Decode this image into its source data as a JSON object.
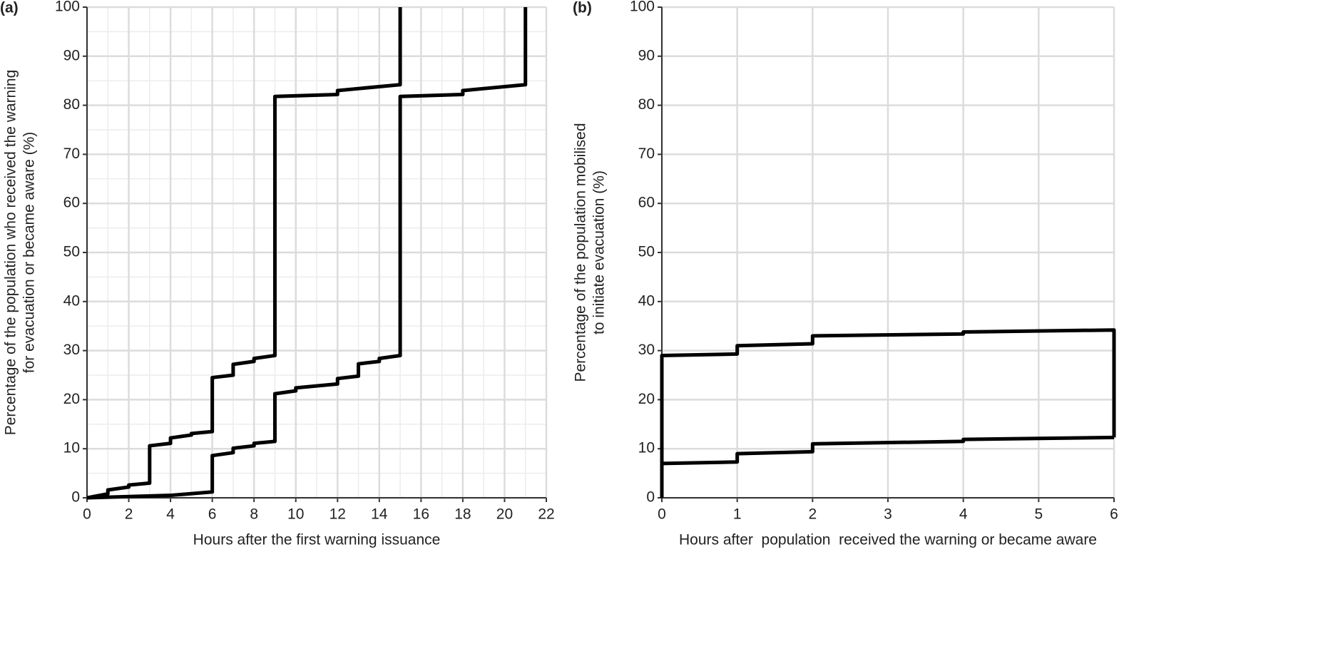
{
  "chart_data": [
    {
      "type": "line",
      "panel": "(a)",
      "xlabel": "Hours after the first warning issuance",
      "ylabel": [
        "Percentage of the population who received the warning",
        "for evacuation or became aware (%)"
      ],
      "xlim": [
        0,
        22
      ],
      "xticks": [
        0,
        2,
        4,
        6,
        8,
        10,
        12,
        14,
        16,
        18,
        20,
        22
      ],
      "ylim": [
        0,
        100
      ],
      "yticks": [
        0,
        10,
        20,
        30,
        40,
        50,
        60,
        70,
        80,
        90,
        100
      ],
      "grid": true,
      "minor_grid": true,
      "series": [
        {
          "color": "#000000",
          "x": [
            0,
            1,
            1,
            2,
            2,
            3,
            3,
            4,
            4,
            5,
            5,
            6,
            6,
            7,
            7,
            8,
            8,
            9,
            9,
            12,
            12,
            15,
            15
          ],
          "values": [
            0,
            0.8,
            1.6,
            2.2,
            2.6,
            3,
            10.6,
            11.1,
            12.2,
            12.8,
            13.1,
            13.5,
            24.5,
            25,
            27.2,
            27.8,
            28.4,
            29,
            81.8,
            82.2,
            83,
            84.2,
            100
          ]
        },
        {
          "color": "#000000",
          "x": [
            0,
            4,
            6,
            6,
            7,
            7,
            8,
            8,
            9,
            9,
            10,
            10,
            12,
            12,
            13,
            13,
            14,
            14,
            15,
            15,
            18,
            18,
            21,
            21
          ],
          "values": [
            0,
            0.5,
            1.2,
            8.6,
            9.2,
            10.1,
            10.6,
            11.1,
            11.5,
            21.2,
            21.8,
            22.4,
            23.2,
            24.3,
            24.8,
            27.3,
            27.8,
            28.4,
            29,
            81.8,
            82.2,
            83,
            84.2,
            100
          ]
        }
      ]
    },
    {
      "type": "line",
      "panel": "(b)",
      "xlabel": "Hours after  population  received the warning or became aware",
      "ylabel": [
        "Percentage of the population mobilised",
        "to initiate evacuation (%)"
      ],
      "xlim": [
        0,
        6
      ],
      "xticks": [
        0,
        1,
        2,
        3,
        4,
        5,
        6
      ],
      "ylim": [
        0,
        100
      ],
      "yticks": [
        0,
        10,
        20,
        30,
        40,
        50,
        60,
        70,
        80,
        90,
        100
      ],
      "grid": true,
      "minor_grid": false,
      "series": [
        {
          "color": "#000000",
          "x": [
            0,
            0,
            1,
            1,
            2,
            2,
            4,
            4,
            6,
            6
          ],
          "values": [
            0,
            29,
            29.3,
            31,
            31.4,
            33,
            33.4,
            33.8,
            34.2,
            12.3
          ]
        },
        {
          "color": "#000000",
          "x": [
            0,
            0,
            1,
            1,
            2,
            2,
            4,
            4,
            6
          ],
          "values": [
            0,
            7,
            7.3,
            9,
            9.4,
            11,
            11.5,
            11.9,
            12.3
          ]
        }
      ]
    }
  ]
}
